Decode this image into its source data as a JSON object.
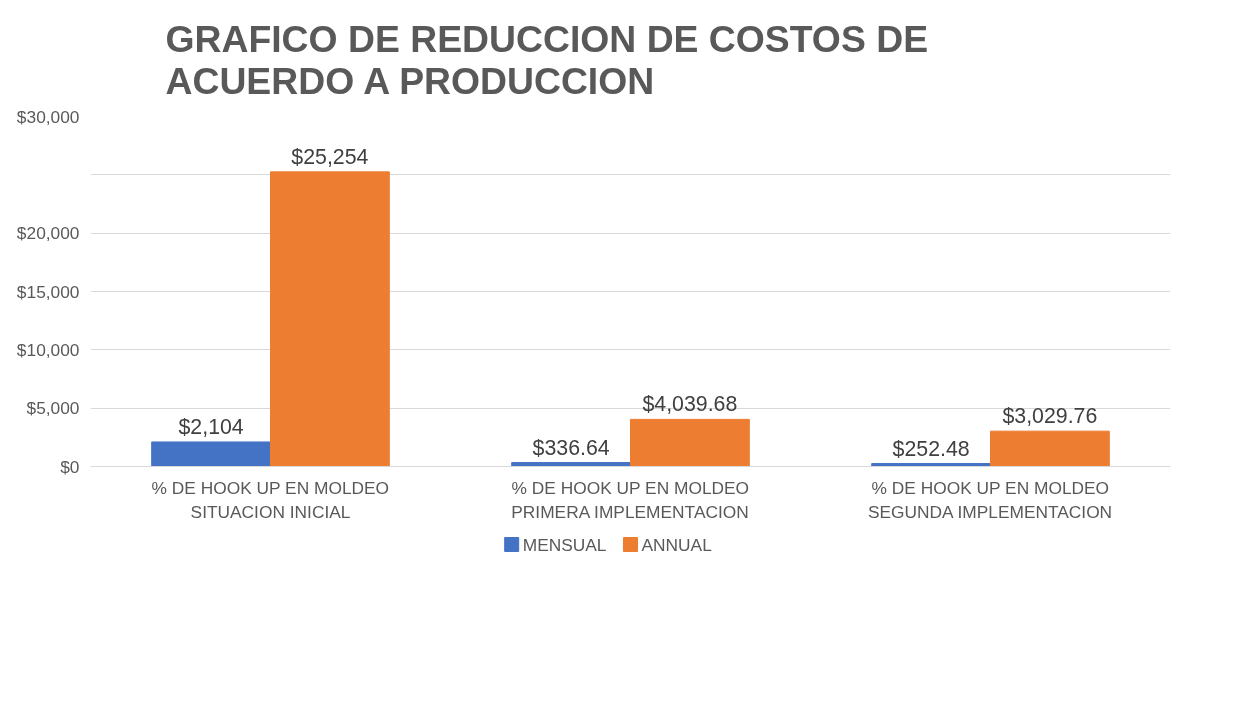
{
  "chart_data": {
    "type": "bar",
    "title": "GRAFICO DE REDUCCION DE COSTOS DE ACUERDO A PRODUCCION",
    "categories": [
      "% DE HOOK UP EN MOLDEO\nSITUACION INICIAL",
      "% DE HOOK UP EN MOLDEO\nPRIMERA IMPLEMENTACION",
      "% DE HOOK UP EN MOLDEO\nSEGUNDA IMPLEMENTACION"
    ],
    "series": [
      {
        "name": "MENSUAL",
        "color": "#4472c4",
        "values": [
          2104,
          336.64,
          252.48
        ],
        "value_labels": [
          "$2,104",
          "$336.64",
          "$252.48"
        ]
      },
      {
        "name": "ANNUAL",
        "color": "#ed7d31",
        "values": [
          25254,
          4039.68,
          3029.76
        ],
        "value_labels": [
          "$25,254",
          "$4,039.68",
          "$3,029.76"
        ]
      }
    ],
    "ylim": [
      0,
      30000
    ],
    "yticks": [
      {
        "value": 0,
        "label": "$0"
      },
      {
        "value": 5000,
        "label": "$5,000"
      },
      {
        "value": 10000,
        "label": "$10,000"
      },
      {
        "value": 15000,
        "label": "$15,000"
      },
      {
        "value": 20000,
        "label": "$20,000"
      },
      {
        "value": 25000,
        "label": null
      },
      {
        "value": 30000,
        "label": "$30,000"
      }
    ],
    "grid": "y",
    "legend": "bottom"
  }
}
